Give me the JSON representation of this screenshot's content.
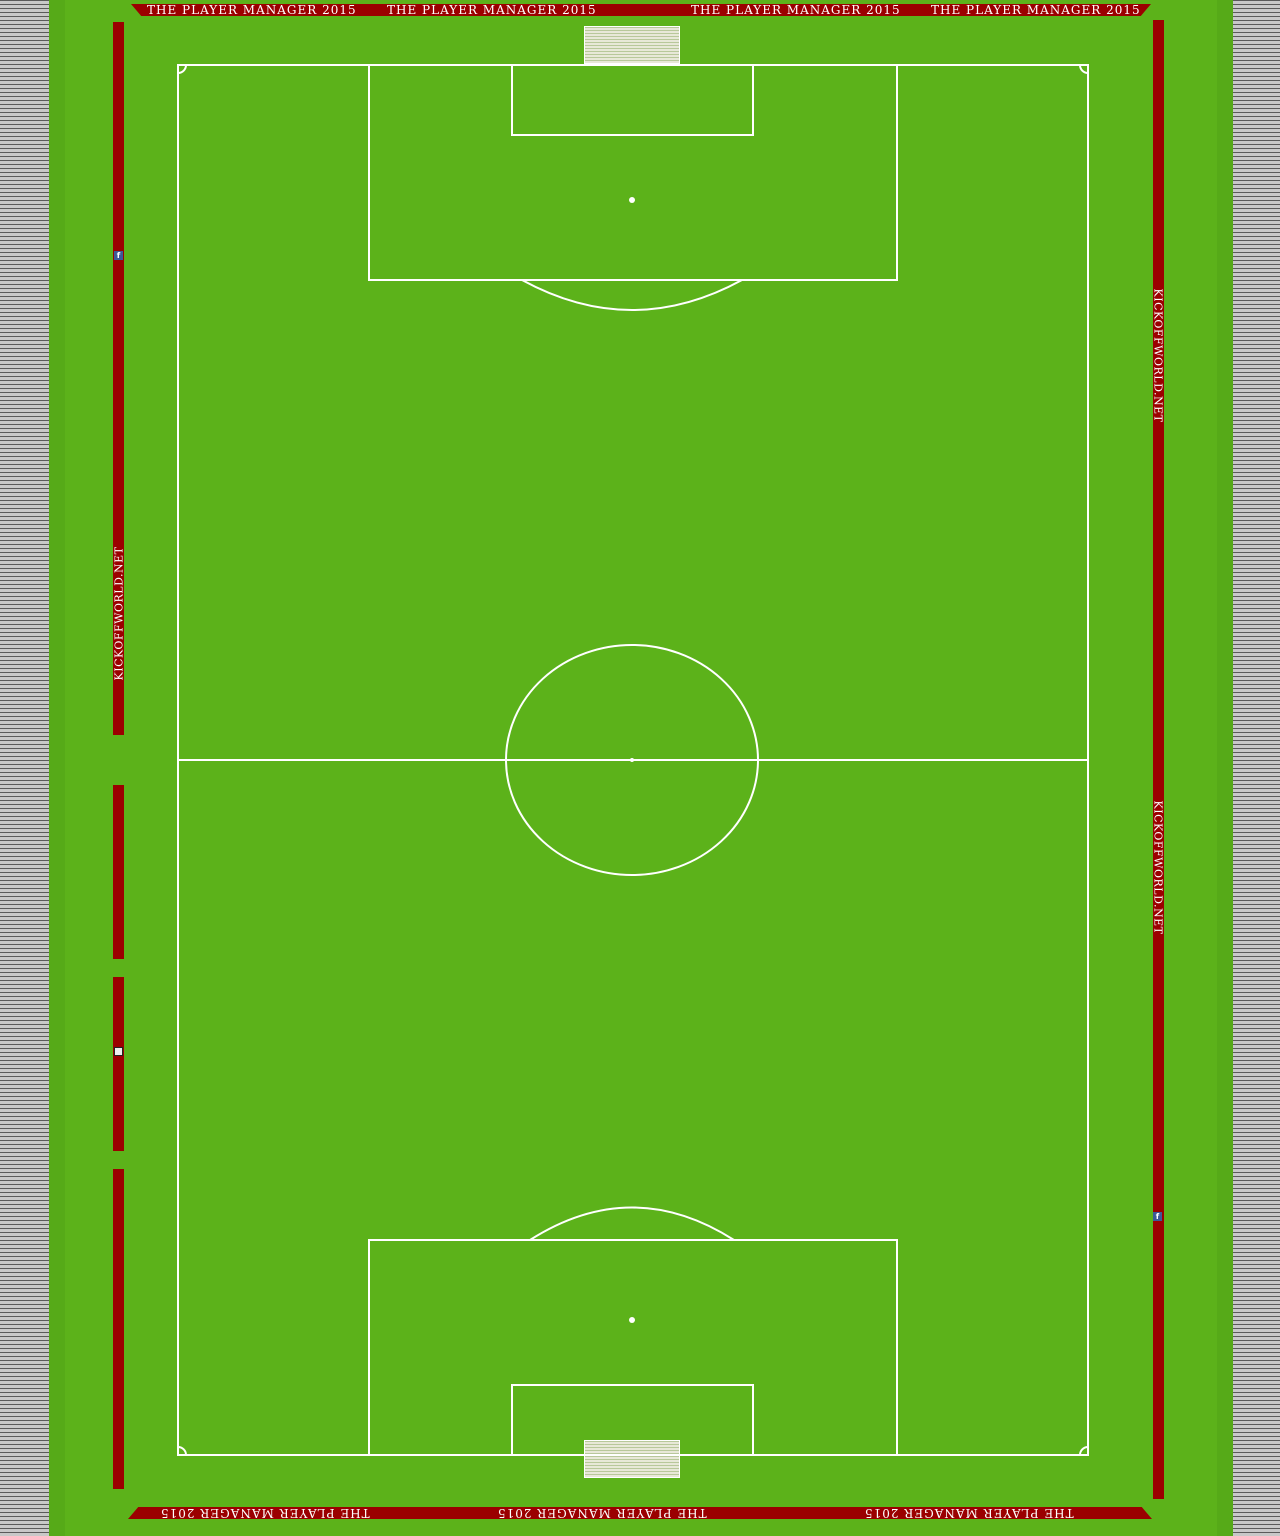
{
  "banners": {
    "top": [
      "THE PLAYER MANAGER 2015",
      "THE PLAYER MANAGER 2015",
      "THE PLAYER MANAGER 2015",
      "THE PLAYER MANAGER 2015"
    ],
    "bottom": [
      "THE PLAYER MANAGER 2015",
      "THE PLAYER MANAGER 2015",
      "THE PLAYER MANAGER 2015"
    ],
    "left_side": "KICKOFFWORLD.NET",
    "right_side_1": "KICKOFFWORLD.NET",
    "right_side_2": "KICKOFFWORLD.NET",
    "facebook_glyph": "f"
  },
  "icons": [
    "facebook-icon",
    "music-icon"
  ],
  "colors": {
    "grass": "#5cb21a",
    "banner": "#9b0000",
    "lines": "#ffffff"
  }
}
